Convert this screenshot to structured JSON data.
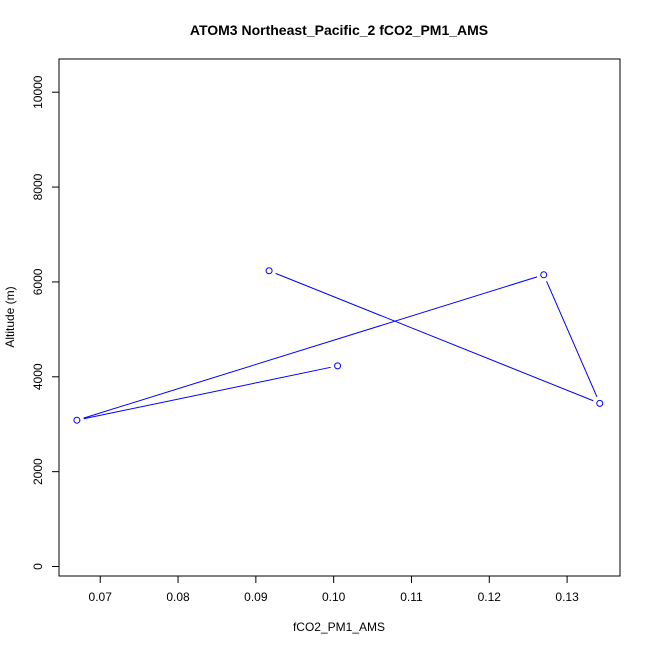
{
  "chart_data": {
    "type": "line",
    "title": "ATOM3 Northeast_Pacific_2 fCO2_PM1_AMS",
    "xlabel": "fCO2_PM1_AMS",
    "ylabel": "Altitude (m)",
    "xlim": [
      0.0647,
      0.1368
    ],
    "ylim": [
      -200,
      10700
    ],
    "x_ticks": [
      0.07,
      0.08,
      0.09,
      0.1,
      0.11,
      0.12,
      0.13
    ],
    "x_tick_labels": [
      "0.07",
      "0.08",
      "0.09",
      "0.10",
      "0.11",
      "0.12",
      "0.13"
    ],
    "y_ticks": [
      0,
      2000,
      4000,
      6000,
      8000,
      10000
    ],
    "y_tick_labels": [
      "0",
      "2000",
      "4000",
      "6000",
      "8000",
      "10000"
    ],
    "series": [
      {
        "color": "#0000ff",
        "marker": "open-circle",
        "points": [
          {
            "x": 0.1005,
            "y": 4230
          },
          {
            "x": 0.067,
            "y": 3085
          },
          {
            "x": 0.127,
            "y": 6150
          },
          {
            "x": 0.1342,
            "y": 3440
          },
          {
            "x": 0.0917,
            "y": 6235
          }
        ]
      }
    ],
    "grid": false,
    "legend": "none"
  }
}
